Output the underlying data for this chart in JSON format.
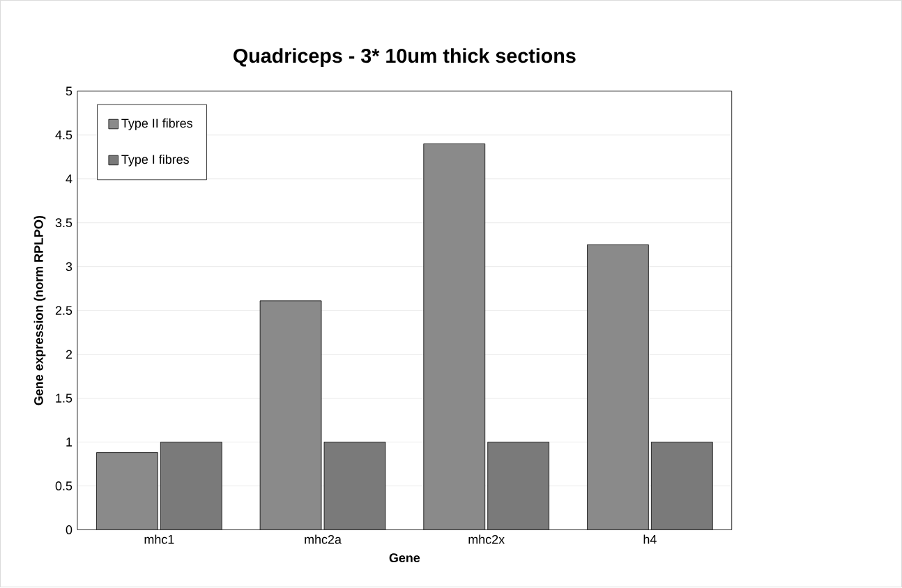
{
  "chart_data": {
    "type": "bar",
    "title": "Quadriceps - 3* 10um thick sections",
    "xlabel": "Gene",
    "ylabel": "Gene expression (norm RPLPO)",
    "categories": [
      "mhc1",
      "mhc2a",
      "mhc2x",
      "h4"
    ],
    "series": [
      {
        "name": "Type II fibres",
        "color": "#8a8a8a",
        "values": [
          0.88,
          2.61,
          4.4,
          3.25
        ]
      },
      {
        "name": "Type I fibres",
        "color": "#7a7a7a",
        "values": [
          1,
          1,
          1,
          1
        ]
      }
    ],
    "ylim": [
      0,
      5
    ],
    "yticks": [
      0,
      0.5,
      1,
      1.5,
      2,
      2.5,
      3,
      3.5,
      4,
      4.5,
      5
    ],
    "grid": "y",
    "legend": "top left"
  }
}
